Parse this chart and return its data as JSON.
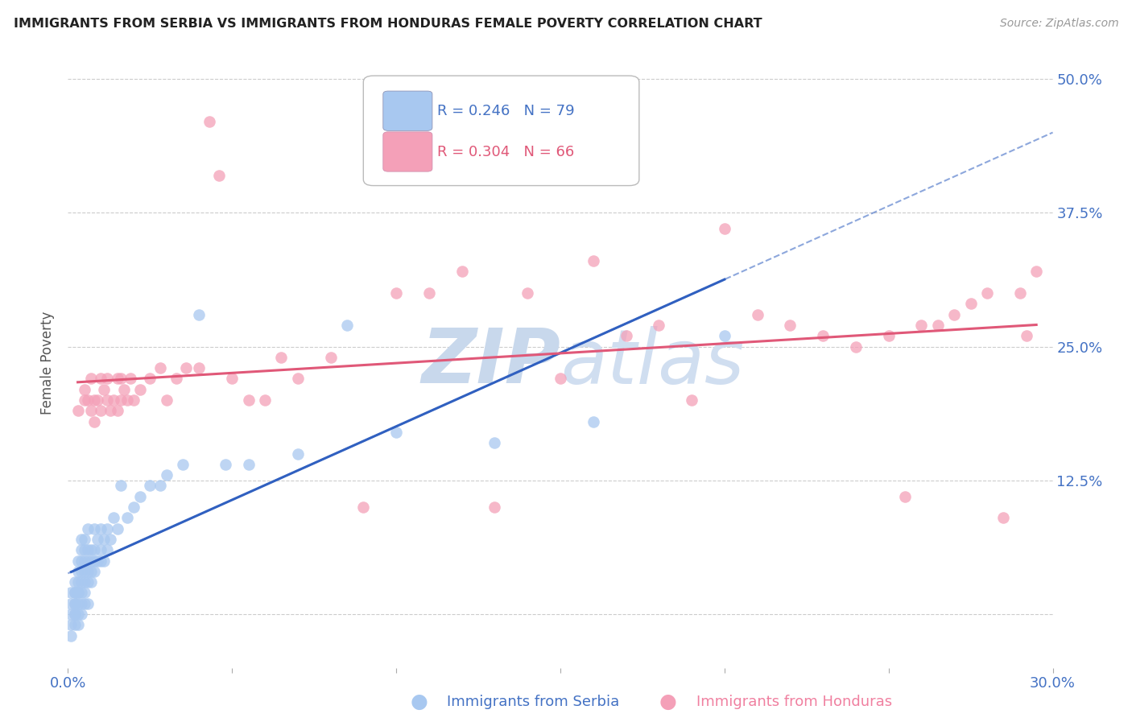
{
  "title": "IMMIGRANTS FROM SERBIA VS IMMIGRANTS FROM HONDURAS FEMALE POVERTY CORRELATION CHART",
  "source": "Source: ZipAtlas.com",
  "xlabel_serbia": "Immigrants from Serbia",
  "xlabel_honduras": "Immigrants from Honduras",
  "ylabel": "Female Poverty",
  "xlim": [
    0.0,
    0.3
  ],
  "ylim": [
    -0.05,
    0.52
  ],
  "yticks": [
    0.0,
    0.125,
    0.25,
    0.375,
    0.5
  ],
  "ytick_labels": [
    "",
    "12.5%",
    "25.0%",
    "37.5%",
    "50.0%"
  ],
  "xticks": [
    0.0,
    0.05,
    0.1,
    0.15,
    0.2,
    0.25,
    0.3
  ],
  "xtick_labels": [
    "0.0%",
    "",
    "",
    "",
    "",
    "",
    "30.0%"
  ],
  "R_serbia": 0.246,
  "N_serbia": 79,
  "R_honduras": 0.304,
  "N_honduras": 66,
  "serbia_color": "#A8C8F0",
  "honduras_color": "#F4A0B8",
  "serbia_line_color": "#3060C0",
  "honduras_line_color": "#E05878",
  "watermark_color": "#C8D8EC",
  "serbia_x": [
    0.001,
    0.001,
    0.001,
    0.001,
    0.001,
    0.002,
    0.002,
    0.002,
    0.002,
    0.002,
    0.002,
    0.002,
    0.002,
    0.003,
    0.003,
    0.003,
    0.003,
    0.003,
    0.003,
    0.003,
    0.003,
    0.004,
    0.004,
    0.004,
    0.004,
    0.004,
    0.004,
    0.004,
    0.004,
    0.005,
    0.005,
    0.005,
    0.005,
    0.005,
    0.005,
    0.005,
    0.006,
    0.006,
    0.006,
    0.006,
    0.006,
    0.006,
    0.007,
    0.007,
    0.007,
    0.007,
    0.008,
    0.008,
    0.008,
    0.008,
    0.009,
    0.009,
    0.01,
    0.01,
    0.01,
    0.011,
    0.011,
    0.012,
    0.012,
    0.013,
    0.014,
    0.015,
    0.016,
    0.018,
    0.02,
    0.022,
    0.025,
    0.028,
    0.03,
    0.035,
    0.04,
    0.048,
    0.055,
    0.07,
    0.085,
    0.1,
    0.13,
    0.16,
    0.2
  ],
  "serbia_y": [
    -0.01,
    0.0,
    0.01,
    0.02,
    -0.02,
    0.0,
    0.01,
    0.02,
    0.03,
    -0.01,
    0.01,
    0.02,
    0.0,
    0.0,
    0.01,
    0.02,
    0.03,
    0.04,
    -0.01,
    0.02,
    0.05,
    0.0,
    0.01,
    0.02,
    0.03,
    0.04,
    0.05,
    0.06,
    0.07,
    0.01,
    0.02,
    0.03,
    0.04,
    0.05,
    0.06,
    0.07,
    0.01,
    0.03,
    0.04,
    0.05,
    0.06,
    0.08,
    0.03,
    0.04,
    0.05,
    0.06,
    0.04,
    0.05,
    0.06,
    0.08,
    0.05,
    0.07,
    0.05,
    0.06,
    0.08,
    0.05,
    0.07,
    0.06,
    0.08,
    0.07,
    0.09,
    0.08,
    0.12,
    0.09,
    0.1,
    0.11,
    0.12,
    0.12,
    0.13,
    0.14,
    0.28,
    0.14,
    0.14,
    0.15,
    0.27,
    0.17,
    0.16,
    0.18,
    0.26
  ],
  "honduras_x": [
    0.003,
    0.005,
    0.005,
    0.006,
    0.007,
    0.007,
    0.008,
    0.008,
    0.009,
    0.01,
    0.01,
    0.011,
    0.012,
    0.012,
    0.013,
    0.014,
    0.015,
    0.015,
    0.016,
    0.016,
    0.017,
    0.018,
    0.019,
    0.02,
    0.022,
    0.025,
    0.028,
    0.03,
    0.033,
    0.036,
    0.04,
    0.043,
    0.046,
    0.05,
    0.055,
    0.06,
    0.065,
    0.07,
    0.08,
    0.09,
    0.1,
    0.11,
    0.12,
    0.13,
    0.14,
    0.15,
    0.16,
    0.17,
    0.18,
    0.19,
    0.2,
    0.21,
    0.22,
    0.23,
    0.24,
    0.25,
    0.255,
    0.26,
    0.265,
    0.27,
    0.275,
    0.28,
    0.285,
    0.29,
    0.292,
    0.295
  ],
  "honduras_y": [
    0.19,
    0.2,
    0.21,
    0.2,
    0.19,
    0.22,
    0.18,
    0.2,
    0.2,
    0.19,
    0.22,
    0.21,
    0.2,
    0.22,
    0.19,
    0.2,
    0.22,
    0.19,
    0.2,
    0.22,
    0.21,
    0.2,
    0.22,
    0.2,
    0.21,
    0.22,
    0.23,
    0.2,
    0.22,
    0.23,
    0.23,
    0.46,
    0.41,
    0.22,
    0.2,
    0.2,
    0.24,
    0.22,
    0.24,
    0.1,
    0.3,
    0.3,
    0.32,
    0.1,
    0.3,
    0.22,
    0.33,
    0.26,
    0.27,
    0.2,
    0.36,
    0.28,
    0.27,
    0.26,
    0.25,
    0.26,
    0.11,
    0.27,
    0.27,
    0.28,
    0.29,
    0.3,
    0.09,
    0.3,
    0.26,
    0.32
  ]
}
